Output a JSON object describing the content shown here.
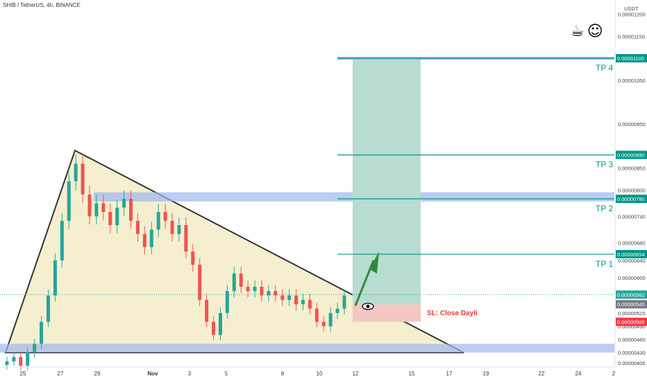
{
  "chart": {
    "title": "SHIB / TetherUS, 4h, BINANCE",
    "currency": "USDT",
    "icons": [
      "coffee-icon",
      "smiley-icon"
    ],
    "sl_label": "SL: Close Dayli",
    "tp_labels": [
      "TP 4",
      "TP 3",
      "TP 2",
      "TP 1"
    ]
  },
  "colors": {
    "up": "#26a69a",
    "down": "#ef5350",
    "triangle_fill": "#f5efcf",
    "zone": "#9fb7ec",
    "target_fill": "#b8dcd2",
    "stop_fill": "#f3c7c3",
    "target_line": "#009688",
    "arrow": "#2e8b3a"
  },
  "chart_data": {
    "type": "candlestick",
    "symbol": "SHIB / TetherUS",
    "interval": "4h",
    "exchange": "BINANCE",
    "ylim": [
      4e-06,
      1.22e-05
    ],
    "ytick_labels": [
      "0.00001200",
      "0.00001150",
      "0.00001050",
      "0.00000950",
      "0.00000850",
      "0.00000800",
      "0.00000740",
      "0.00000680",
      "0.00000640",
      "0.00000600",
      "0.00000520",
      "0.00000490",
      "0.00000460",
      "0.00000430",
      "0.00000406"
    ],
    "ytick_values": [
      1.2e-05,
      1.15e-05,
      1.05e-05,
      9.5e-06,
      8.5e-06,
      8e-06,
      7.4e-06,
      6.8e-06,
      6.4e-06,
      6e-06,
      5.2e-06,
      4.9e-06,
      4.6e-06,
      4.3e-06,
      4.06e-06
    ],
    "xtick_labels": [
      "25",
      "27",
      "29",
      "Nov",
      "3",
      "5",
      "8",
      "10",
      "12",
      "15",
      "17",
      "19",
      "22",
      "24",
      "2"
    ],
    "price_tags": [
      {
        "label": "0.00001100",
        "value": 1.1e-05,
        "kind": "target"
      },
      {
        "label": "0.00000880",
        "value": 8.8e-06,
        "kind": "target"
      },
      {
        "label": "0.00000780",
        "value": 7.8e-06,
        "kind": "target"
      },
      {
        "label": "0.00000654",
        "value": 6.54e-06,
        "kind": "target"
      },
      {
        "label": "0.00000562",
        "value": 5.62e-06,
        "kind": "current"
      },
      {
        "label": "0.00000540",
        "value": 5.4e-06,
        "kind": "entry"
      },
      {
        "label": "0.00000500",
        "value": 5e-06,
        "kind": "stop"
      }
    ],
    "levels": {
      "tp4": 1.1e-05,
      "tp3": 8.8e-06,
      "tp2": 7.8e-06,
      "tp1": 6.54e-06,
      "entry": 5.4e-06,
      "stop": 5e-06,
      "current": 5.62e-06
    },
    "zones": [
      {
        "from": 7.74e-06,
        "to": 7.95e-06,
        "name": "resistance"
      },
      {
        "from": 4.3e-06,
        "to": 4.5e-06,
        "name": "support"
      }
    ],
    "triangle": {
      "apex_price": 8.9e-06,
      "base_price": 4.3e-06
    },
    "series": [
      {
        "name": "SHIB/USDT",
        "values": [
          4.1e-06,
          4.2e-06,
          4e-06,
          4.3e-06,
          4.5e-06,
          5e-06,
          5.6e-06,
          6.4e-06,
          7.3e-06,
          8.2e-06,
          8.6e-06,
          7.9e-06,
          7.4e-06,
          7.7e-06,
          7.5e-06,
          7.2e-06,
          7.6e-06,
          7.8e-06,
          7.3e-06,
          7e-06,
          6.7e-06,
          7.1e-06,
          7.5e-06,
          7.3e-06,
          7e-06,
          7.2e-06,
          6.6e-06,
          6.3e-06,
          5.5e-06,
          5e-06,
          4.7e-06,
          5.2e-06,
          5.7e-06,
          6.1e-06,
          5.8e-06,
          5.7e-06,
          5.8e-06,
          5.6e-06,
          5.7e-06,
          5.6e-06,
          5.5e-06,
          5.6e-06,
          5.4e-06,
          5.5e-06,
          5.3e-06,
          5e-06,
          4.9e-06,
          5.2e-06,
          5.3e-06,
          5.6e-06
        ]
      }
    ]
  }
}
